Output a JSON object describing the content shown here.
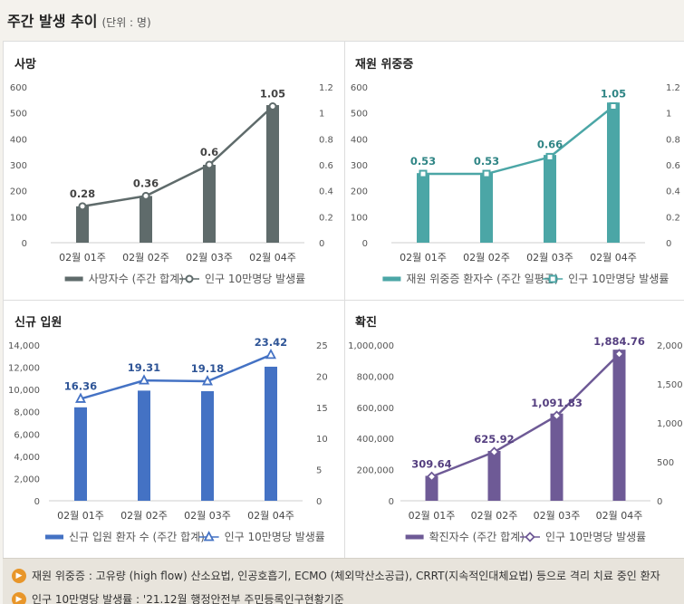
{
  "header": {
    "title": "주간 발생 추이",
    "unit": "(단위 : 명)"
  },
  "chart_data": [
    {
      "type": "bar",
      "title": "사망",
      "categories": [
        "02월 01주",
        "02월 02주",
        "02월 03주",
        "02월 04주"
      ],
      "series": [
        {
          "name": "사망자수 (주간 합계)",
          "kind": "bar",
          "axis": "left",
          "values": [
            140,
            180,
            300,
            530
          ]
        },
        {
          "name": "인구 10만명당 발생률",
          "kind": "line",
          "axis": "right",
          "values": [
            0.28,
            0.36,
            0.6,
            1.05
          ]
        }
      ],
      "labels": [
        "0.28",
        "0.36",
        "0.6",
        "1.05"
      ],
      "ylim": [
        0,
        600
      ],
      "yticks": [
        "0",
        "100",
        "200",
        "300",
        "400",
        "500",
        "600"
      ],
      "y2lim": [
        0,
        1.2
      ],
      "y2ticks": [
        "0",
        "0.2",
        "0.4",
        "0.6",
        "0.8",
        "1",
        "1.2"
      ],
      "colors": {
        "bar": "#5f6b6b",
        "line": "#5f6b6b",
        "label": "#444444"
      },
      "marker": "circle",
      "legend": "bottom"
    },
    {
      "type": "bar",
      "title": "재원 위중증",
      "categories": [
        "02월 01주",
        "02월 02주",
        "02월 03주",
        "02월 04주"
      ],
      "series": [
        {
          "name": "재원 위중증 환자수 (주간 일평균)",
          "kind": "bar",
          "axis": "left",
          "values": [
            268,
            268,
            338,
            540
          ]
        },
        {
          "name": "인구 10만명당 발생률",
          "kind": "line",
          "axis": "right",
          "values": [
            0.53,
            0.53,
            0.66,
            1.05
          ]
        }
      ],
      "labels": [
        "0.53",
        "0.53",
        "0.66",
        "1.05"
      ],
      "ylim": [
        0,
        600
      ],
      "yticks": [
        "0",
        "100",
        "200",
        "300",
        "400",
        "500",
        "600"
      ],
      "y2lim": [
        0,
        1.2
      ],
      "y2ticks": [
        "0",
        "0.2",
        "0.4",
        "0.6",
        "0.8",
        "1",
        "1.2"
      ],
      "colors": {
        "bar": "#4ba6a6",
        "line": "#4ba6a6",
        "label": "#2f8585"
      },
      "marker": "square",
      "legend": "bottom"
    },
    {
      "type": "bar",
      "title": "신규 입원",
      "categories": [
        "02월 01주",
        "02월 02주",
        "02월 03주",
        "02월 04주"
      ],
      "series": [
        {
          "name": "신규 입원 환자 수 (주간 합계)",
          "kind": "bar",
          "axis": "left",
          "values": [
            8400,
            9900,
            9850,
            12050
          ]
        },
        {
          "name": "인구 10만명당 발생률",
          "kind": "line",
          "axis": "right",
          "values": [
            16.36,
            19.31,
            19.18,
            23.42
          ]
        }
      ],
      "labels": [
        "16.36",
        "19.31",
        "19.18",
        "23.42"
      ],
      "ylim": [
        0,
        14000
      ],
      "yticks": [
        "0",
        "2,000",
        "4,000",
        "6,000",
        "8,000",
        "10,000",
        "12,000",
        "14,000"
      ],
      "y2lim": [
        0,
        25
      ],
      "y2ticks": [
        "0",
        "5",
        "10",
        "15",
        "20",
        "25"
      ],
      "colors": {
        "bar": "#4472c4",
        "line": "#4472c4",
        "label": "#2f5597"
      },
      "marker": "triangle",
      "legend": "bottom"
    },
    {
      "type": "bar",
      "title": "확진",
      "categories": [
        "02월 01주",
        "02월 02주",
        "02월 03주",
        "02월 04주"
      ],
      "series": [
        {
          "name": "확진자수 (주간 합계)",
          "kind": "bar",
          "axis": "left",
          "values": [
            160000,
            320000,
            560000,
            970000
          ]
        },
        {
          "name": "인구 10만명당 발생률",
          "kind": "line",
          "axis": "right",
          "values": [
            309.64,
            625.92,
            1091.83,
            1884.76
          ]
        }
      ],
      "labels": [
        "309.64",
        "625.92",
        "1,091.83",
        "1,884.76"
      ],
      "ylim": [
        0,
        1000000
      ],
      "yticks": [
        "0",
        "200,000",
        "400,000",
        "600,000",
        "800,000",
        "1,000,000"
      ],
      "y2lim": [
        0,
        2000
      ],
      "y2ticks": [
        "0",
        "500",
        "1,000",
        "1,500",
        "2,000"
      ],
      "colors": {
        "bar": "#6e5a96",
        "line": "#6e5a96",
        "label": "#553f80"
      },
      "marker": "diamond",
      "legend": "bottom"
    }
  ],
  "footer": {
    "note1": "재원 위중증 : 고유량 (high flow) 산소요법, 인공호흡기, ECMO (체외막산소공급), CRRT(지속적인대체요법) 등으로 격리 치료 중인 환자",
    "note2": "인구 10만명당 발생률 : '21.12월 행정안전부 주민등록인구현황기준",
    "icon": "speaker-icon"
  }
}
